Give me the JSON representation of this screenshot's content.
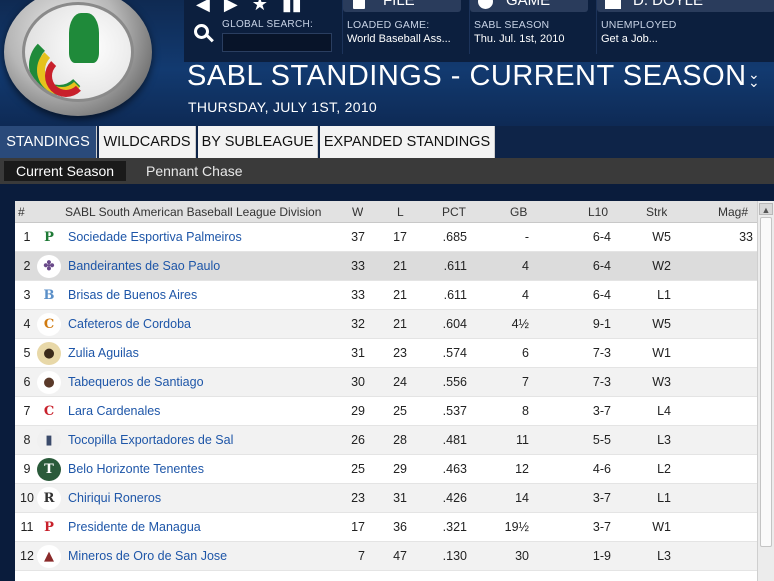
{
  "toolbar": {
    "icons": [
      "back-icon",
      "forward-icon",
      "star-icon",
      "menu-icon"
    ],
    "search_label": "GLOBAL SEARCH:",
    "search_value": ""
  },
  "info": [
    {
      "button": "FILE",
      "label": "LOADED GAME:",
      "value": "World Baseball Ass..."
    },
    {
      "button": "GAME",
      "label": "SABL SEASON",
      "value": "Thu. Jul. 1st, 2010"
    },
    {
      "button": "D. DOYLE",
      "label": "UNEMPLOYED",
      "value": "Get a Job..."
    }
  ],
  "header": {
    "title": "SABL STANDINGS - CURRENT SEASON",
    "date": "THURSDAY, JULY 1ST, 2010"
  },
  "tabs": [
    "STANDINGS",
    "WILDCARDS",
    "BY SUBLEAGUE",
    "EXPANDED STANDINGS"
  ],
  "subtabs": [
    "Current Season",
    "Pennant Chase"
  ],
  "table": {
    "columns": {
      "num": "#",
      "team": "SABL South American Baseball League Division",
      "w": "W",
      "l": "L",
      "pct": "PCT",
      "gb": "GB",
      "l10": "L10",
      "strk": "Strk",
      "mag": "Mag#"
    },
    "rows": [
      {
        "num": "1",
        "team": "Sociedade Esportiva Palmeiros",
        "w": "37",
        "l": "17",
        "pct": ".685",
        "gb": "-",
        "l10": "6-4",
        "strk": "W5",
        "mag": "33",
        "logo": "P",
        "logo_color": "#1f7a36",
        "logo_bg": "#ffffff"
      },
      {
        "num": "2",
        "team": "Bandeirantes de Sao Paulo",
        "w": "33",
        "l": "21",
        "pct": ".611",
        "gb": "4",
        "l10": "6-4",
        "strk": "W2",
        "mag": "",
        "logo": "✤",
        "logo_color": "#6a4a8a",
        "logo_bg": "#ffffff"
      },
      {
        "num": "3",
        "team": "Brisas de Buenos Aires",
        "w": "33",
        "l": "21",
        "pct": ".611",
        "gb": "4",
        "l10": "6-4",
        "strk": "L1",
        "mag": "",
        "logo": "B",
        "logo_color": "#5a8fc8",
        "logo_bg": "#ffffff"
      },
      {
        "num": "4",
        "team": "Cafeteros de Cordoba",
        "w": "32",
        "l": "21",
        "pct": ".604",
        "gb": "4½",
        "l10": "9-1",
        "strk": "W5",
        "mag": "",
        "logo": "C",
        "logo_color": "#d07a10",
        "logo_bg": "#ffffff"
      },
      {
        "num": "5",
        "team": "Zulia Aguilas",
        "w": "31",
        "l": "23",
        "pct": ".574",
        "gb": "6",
        "l10": "7-3",
        "strk": "W1",
        "mag": "",
        "logo": "●",
        "logo_color": "#3a2a1a",
        "logo_bg": "#e8d8a8"
      },
      {
        "num": "6",
        "team": "Tabequeros de Santiago",
        "w": "30",
        "l": "24",
        "pct": ".556",
        "gb": "7",
        "l10": "7-3",
        "strk": "W3",
        "mag": "",
        "logo": "●",
        "logo_color": "#5a3a2a",
        "logo_bg": "#ffffff"
      },
      {
        "num": "7",
        "team": "Lara Cardenales",
        "w": "29",
        "l": "25",
        "pct": ".537",
        "gb": "8",
        "l10": "3-7",
        "strk": "L4",
        "mag": "",
        "logo": "C",
        "logo_color": "#c8202b",
        "logo_bg": "#ffffff"
      },
      {
        "num": "8",
        "team": "Tocopilla Exportadores de Sal",
        "w": "26",
        "l": "28",
        "pct": ".481",
        "gb": "11",
        "l10": "5-5",
        "strk": "L3",
        "mag": "",
        "logo": "▮",
        "logo_color": "#3a4a6a",
        "logo_bg": "#f0f0f0"
      },
      {
        "num": "9",
        "team": "Belo Horizonte Tenentes",
        "w": "25",
        "l": "29",
        "pct": ".463",
        "gb": "12",
        "l10": "4-6",
        "strk": "L2",
        "mag": "",
        "logo": "T",
        "logo_color": "#ffffff",
        "logo_bg": "#2a5a3a"
      },
      {
        "num": "10",
        "team": "Chiriqui Roneros",
        "w": "23",
        "l": "31",
        "pct": ".426",
        "gb": "14",
        "l10": "3-7",
        "strk": "L1",
        "mag": "",
        "logo": "R",
        "logo_color": "#333333",
        "logo_bg": "#ffffff"
      },
      {
        "num": "11",
        "team": "Presidente de Managua",
        "w": "17",
        "l": "36",
        "pct": ".321",
        "gb": "19½",
        "l10": "3-7",
        "strk": "W1",
        "mag": "",
        "logo": "P",
        "logo_color": "#c8202b",
        "logo_bg": "#ffffff"
      },
      {
        "num": "12",
        "team": "Mineros de Oro de San Jose",
        "w": "7",
        "l": "47",
        "pct": ".130",
        "gb": "30",
        "l10": "1-9",
        "strk": "L3",
        "mag": "",
        "logo": "▲",
        "logo_color": "#8a2a2a",
        "logo_bg": "#ffffff"
      }
    ]
  }
}
